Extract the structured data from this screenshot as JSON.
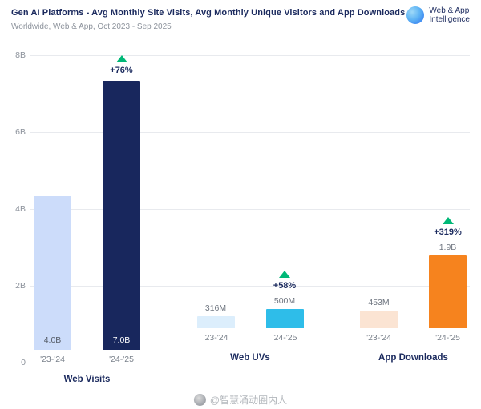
{
  "header": {
    "title": "Gen AI Platforms - Avg Monthly Site Visits, Avg Monthly Unique Visitors and App Downloads",
    "subtitle": "Worldwide, Web & App, Oct 2023 - Sep 2025",
    "logo": {
      "line1": "Web & App",
      "line2": "Intelligence",
      "icon": "similarweb-globe"
    }
  },
  "colors": {
    "navy": "#1b2a5e",
    "gray_text": "#6f7680",
    "axis_text": "#8d939c",
    "grid": "#e8eaee",
    "change_green": "#00b877"
  },
  "watermark": {
    "text": "@智慧涌动圈内人"
  },
  "chart_data": {
    "type": "bar",
    "title": "Gen AI Platforms - Avg Monthly Site Visits, Avg Monthly Unique Visitors and App Downloads",
    "subtitle": "Worldwide, Web & App, Oct 2023 - Sep 2025",
    "unit": "avg monthly, value_b expressed in billions",
    "ylim": [
      0,
      8
    ],
    "y_ticks": [
      "8B",
      "6B",
      "4B",
      "2B",
      "0"
    ],
    "grid": true,
    "legend": "none",
    "groups": [
      {
        "label": "Web Visits",
        "change": "+76%",
        "bars": [
          {
            "period": "'23-'24",
            "label": "4.0B",
            "value_b": 4.0,
            "color": "#ccdcfa"
          },
          {
            "period": "'24-'25",
            "label": "7.0B",
            "value_b": 7.0,
            "color": "#18275d"
          }
        ]
      },
      {
        "label": "Web UVs",
        "change": "+58%",
        "bars": [
          {
            "period": "'23-'24",
            "label": "316M",
            "value_b": 0.316,
            "color": "#dceefc"
          },
          {
            "period": "'24-'25",
            "label": "500M",
            "value_b": 0.5,
            "color": "#2ebde9"
          }
        ]
      },
      {
        "label": "App Downloads",
        "change": "+319%",
        "bars": [
          {
            "period": "'23-'24",
            "label": "453M",
            "value_b": 0.453,
            "color": "#fbe4d3"
          },
          {
            "period": "'24-'25",
            "label": "1.9B",
            "value_b": 1.9,
            "color": "#f6831e"
          }
        ]
      }
    ]
  }
}
